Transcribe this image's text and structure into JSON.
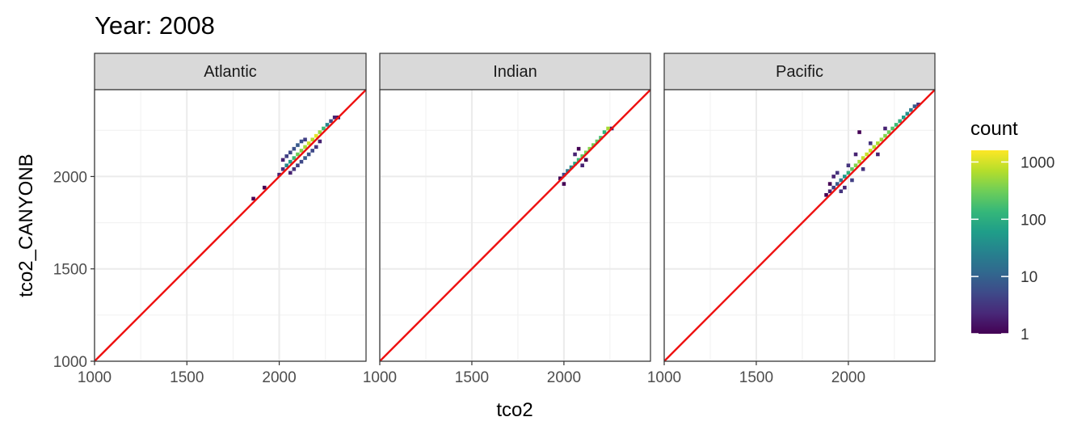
{
  "chart_data": {
    "type": "heatmap",
    "title": "Year: 2008",
    "xlabel": "tco2",
    "ylabel": "tco2_CANYONB",
    "xlim": [
      1000,
      2470
    ],
    "ylim": [
      1000,
      2470
    ],
    "x_ticks": [
      1000,
      1500,
      2000
    ],
    "y_ticks": [
      1000,
      1500,
      2000
    ],
    "x_tick_labels": [
      "1000",
      "1500",
      "2000"
    ],
    "y_tick_labels": [
      "1000",
      "1500",
      "2000"
    ],
    "grid": true,
    "reference_line": {
      "slope": 1,
      "intercept": 0,
      "color": "#ee1111"
    },
    "legend": {
      "title": "count",
      "position": "right",
      "scale": "log10",
      "breaks": [
        1,
        10,
        100,
        1000
      ],
      "break_labels": [
        "1",
        "10",
        "100",
        "1000"
      ],
      "range": [
        1,
        1600
      ],
      "colors": [
        "#440154",
        "#482878",
        "#3e4a89",
        "#31688e",
        "#26828e",
        "#1f9e89",
        "#35b779",
        "#6ece58",
        "#b5de2b",
        "#fde725"
      ]
    },
    "bin_width": 20,
    "facets": [
      {
        "name": "Atlantic",
        "bins": [
          {
            "x": 1860,
            "y": 1880,
            "count": 1
          },
          {
            "x": 1920,
            "y": 1940,
            "count": 1
          },
          {
            "x": 2000,
            "y": 2010,
            "count": 2
          },
          {
            "x": 2020,
            "y": 2040,
            "count": 3
          },
          {
            "x": 2020,
            "y": 2090,
            "count": 2
          },
          {
            "x": 2040,
            "y": 2060,
            "count": 30
          },
          {
            "x": 2040,
            "y": 2110,
            "count": 4
          },
          {
            "x": 2060,
            "y": 2020,
            "count": 2
          },
          {
            "x": 2060,
            "y": 2080,
            "count": 60
          },
          {
            "x": 2060,
            "y": 2130,
            "count": 5
          },
          {
            "x": 2080,
            "y": 2040,
            "count": 3
          },
          {
            "x": 2080,
            "y": 2100,
            "count": 150
          },
          {
            "x": 2080,
            "y": 2150,
            "count": 6
          },
          {
            "x": 2100,
            "y": 2060,
            "count": 4
          },
          {
            "x": 2100,
            "y": 2120,
            "count": 300
          },
          {
            "x": 2100,
            "y": 2170,
            "count": 8
          },
          {
            "x": 2120,
            "y": 2080,
            "count": 5
          },
          {
            "x": 2120,
            "y": 2140,
            "count": 400
          },
          {
            "x": 2120,
            "y": 2190,
            "count": 6
          },
          {
            "x": 2140,
            "y": 2100,
            "count": 8
          },
          {
            "x": 2140,
            "y": 2160,
            "count": 600
          },
          {
            "x": 2140,
            "y": 2200,
            "count": 4
          },
          {
            "x": 2160,
            "y": 2120,
            "count": 6
          },
          {
            "x": 2160,
            "y": 2180,
            "count": 900
          },
          {
            "x": 2180,
            "y": 2140,
            "count": 5
          },
          {
            "x": 2180,
            "y": 2200,
            "count": 700
          },
          {
            "x": 2200,
            "y": 2160,
            "count": 3
          },
          {
            "x": 2200,
            "y": 2220,
            "count": 1200
          },
          {
            "x": 2220,
            "y": 2240,
            "count": 500
          },
          {
            "x": 2220,
            "y": 2190,
            "count": 2
          },
          {
            "x": 2240,
            "y": 2260,
            "count": 150
          },
          {
            "x": 2260,
            "y": 2280,
            "count": 30
          },
          {
            "x": 2280,
            "y": 2300,
            "count": 5
          },
          {
            "x": 2300,
            "y": 2320,
            "count": 2
          },
          {
            "x": 2320,
            "y": 2320,
            "count": 1
          }
        ]
      },
      {
        "name": "Indian",
        "bins": [
          {
            "x": 1980,
            "y": 1990,
            "count": 1
          },
          {
            "x": 2000,
            "y": 1960,
            "count": 1
          },
          {
            "x": 2000,
            "y": 2010,
            "count": 5
          },
          {
            "x": 2020,
            "y": 2030,
            "count": 20
          },
          {
            "x": 2040,
            "y": 2050,
            "count": 40
          },
          {
            "x": 2060,
            "y": 2070,
            "count": 80
          },
          {
            "x": 2060,
            "y": 2120,
            "count": 2
          },
          {
            "x": 2080,
            "y": 2090,
            "count": 150
          },
          {
            "x": 2080,
            "y": 2150,
            "count": 1
          },
          {
            "x": 2100,
            "y": 2110,
            "count": 250
          },
          {
            "x": 2100,
            "y": 2060,
            "count": 2
          },
          {
            "x": 2120,
            "y": 2130,
            "count": 350
          },
          {
            "x": 2120,
            "y": 2090,
            "count": 1
          },
          {
            "x": 2140,
            "y": 2150,
            "count": 400
          },
          {
            "x": 2160,
            "y": 2170,
            "count": 300
          },
          {
            "x": 2180,
            "y": 2190,
            "count": 250
          },
          {
            "x": 2200,
            "y": 2210,
            "count": 180
          },
          {
            "x": 2220,
            "y": 2240,
            "count": 120
          },
          {
            "x": 2240,
            "y": 2260,
            "count": 600
          },
          {
            "x": 2260,
            "y": 2260,
            "count": 2
          }
        ]
      },
      {
        "name": "Pacific",
        "bins": [
          {
            "x": 1880,
            "y": 1900,
            "count": 1
          },
          {
            "x": 1900,
            "y": 1920,
            "count": 2
          },
          {
            "x": 1900,
            "y": 1960,
            "count": 1
          },
          {
            "x": 1920,
            "y": 1940,
            "count": 4
          },
          {
            "x": 1920,
            "y": 2000,
            "count": 2
          },
          {
            "x": 1940,
            "y": 1960,
            "count": 8
          },
          {
            "x": 1940,
            "y": 2020,
            "count": 3
          },
          {
            "x": 1960,
            "y": 1980,
            "count": 20
          },
          {
            "x": 1960,
            "y": 1920,
            "count": 3
          },
          {
            "x": 1980,
            "y": 2000,
            "count": 50
          },
          {
            "x": 1980,
            "y": 1940,
            "count": 2
          },
          {
            "x": 2000,
            "y": 2020,
            "count": 120
          },
          {
            "x": 2000,
            "y": 2060,
            "count": 3
          },
          {
            "x": 2020,
            "y": 2040,
            "count": 250
          },
          {
            "x": 2020,
            "y": 1980,
            "count": 4
          },
          {
            "x": 2040,
            "y": 2060,
            "count": 400
          },
          {
            "x": 2040,
            "y": 2120,
            "count": 2
          },
          {
            "x": 2060,
            "y": 2080,
            "count": 600
          },
          {
            "x": 2060,
            "y": 2240,
            "count": 1
          },
          {
            "x": 2080,
            "y": 2100,
            "count": 800
          },
          {
            "x": 2080,
            "y": 2040,
            "count": 3
          },
          {
            "x": 2100,
            "y": 2120,
            "count": 900
          },
          {
            "x": 2120,
            "y": 2140,
            "count": 800
          },
          {
            "x": 2120,
            "y": 2180,
            "count": 3
          },
          {
            "x": 2140,
            "y": 2160,
            "count": 700
          },
          {
            "x": 2160,
            "y": 2180,
            "count": 600
          },
          {
            "x": 2160,
            "y": 2120,
            "count": 2
          },
          {
            "x": 2180,
            "y": 2200,
            "count": 500
          },
          {
            "x": 2200,
            "y": 2220,
            "count": 400
          },
          {
            "x": 2200,
            "y": 2260,
            "count": 2
          },
          {
            "x": 2220,
            "y": 2240,
            "count": 300
          },
          {
            "x": 2240,
            "y": 2260,
            "count": 200
          },
          {
            "x": 2260,
            "y": 2280,
            "count": 150
          },
          {
            "x": 2280,
            "y": 2300,
            "count": 100
          },
          {
            "x": 2300,
            "y": 2320,
            "count": 60
          },
          {
            "x": 2320,
            "y": 2340,
            "count": 40
          },
          {
            "x": 2340,
            "y": 2360,
            "count": 20
          },
          {
            "x": 2360,
            "y": 2380,
            "count": 8
          },
          {
            "x": 2380,
            "y": 2390,
            "count": 3
          }
        ]
      }
    ]
  }
}
